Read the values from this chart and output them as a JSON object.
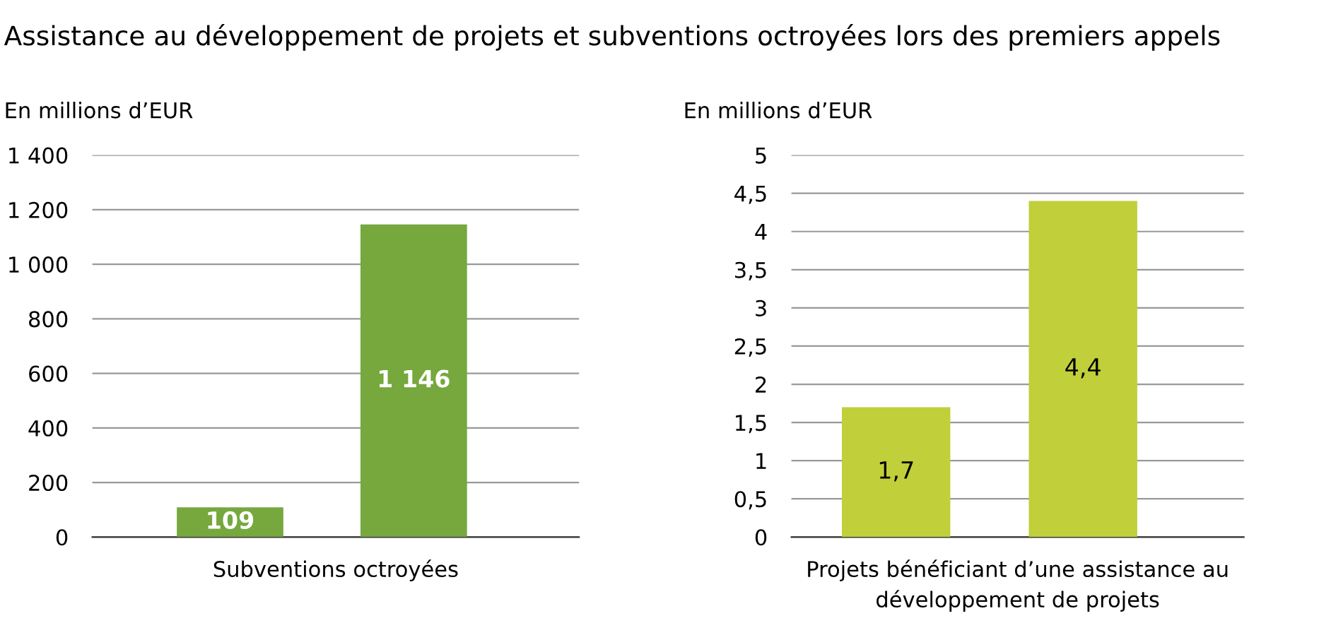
{
  "chart_data": [
    {
      "type": "bar",
      "title": "Assistance au développement de projets et subventions octroyées lors des premiers appels",
      "ylabel": "En millions d’EUR",
      "xlabel": "Subventions octroyées",
      "categories": [
        null,
        null
      ],
      "values": [
        109,
        1146
      ],
      "value_labels": [
        "109",
        "1 146"
      ],
      "color": "#76a83e",
      "ylim": [
        0,
        1400
      ],
      "yticks": [
        0,
        200,
        400,
        600,
        800,
        {
          "value": 1000,
          "label": "1 000"
        },
        {
          "value": 1200,
          "label": "1 200"
        },
        {
          "value": 1400,
          "label": "1 400"
        }
      ],
      "grid": "y"
    },
    {
      "type": "bar",
      "ylabel": "En millions d’EUR",
      "xlabel": "Projets bénéficiant d’une assistance au\ndéveloppement de projets",
      "categories": [
        null,
        null
      ],
      "values": [
        1.7,
        4.4
      ],
      "value_labels": [
        "1,7",
        "4,4"
      ],
      "color": "#c0cf3a",
      "ylim": [
        0,
        5
      ],
      "yticks": [
        0,
        {
          "value": 0.5,
          "label": "0,5"
        },
        1,
        {
          "value": 1.5,
          "label": "1,5"
        },
        2,
        {
          "value": 2.5,
          "label": "2,5"
        },
        3,
        {
          "value": 3.5,
          "label": "3,5"
        },
        4,
        {
          "value": 4.5,
          "label": "4,5"
        },
        5
      ],
      "grid": "y"
    }
  ]
}
